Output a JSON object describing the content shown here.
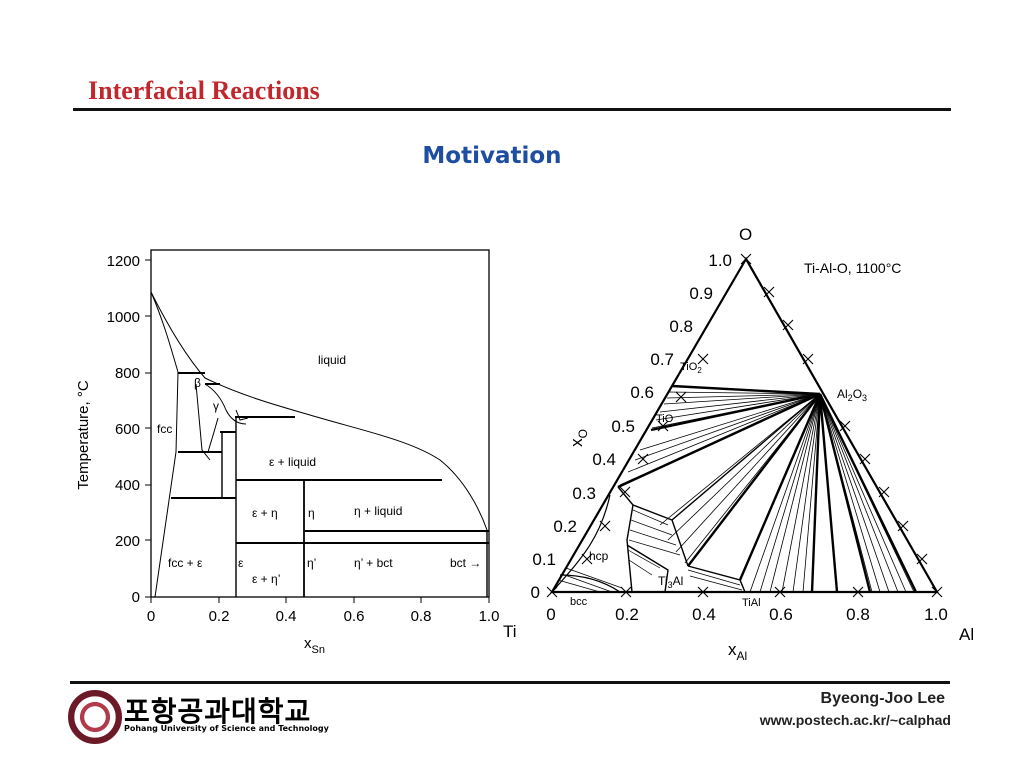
{
  "slide": {
    "title": "Interfacial Reactions",
    "subtitle": "Motivation"
  },
  "binary_diagram": {
    "ylabel": "Temperature, °C",
    "xlabel_main": "x",
    "xlabel_sub": "Sn",
    "y_ticks": [
      "0",
      "200",
      "400",
      "600",
      "800",
      "1000",
      "1200"
    ],
    "x_ticks": [
      "0",
      "0.2",
      "0.4",
      "0.6",
      "0.8",
      "1.0"
    ],
    "phases": {
      "liquid": "liquid",
      "fcc": "fcc",
      "beta": "β",
      "gamma": "γ",
      "eps_liquid": "ε + liquid",
      "eps_eta": "ε + η",
      "eta": "η",
      "eta_liquid": "η + liquid",
      "fcc_eps": "fcc + ε",
      "eps": "ε",
      "eta_prime": "η’",
      "eta_prime_bct": "η’ + bct",
      "bct": "bct →",
      "eps_eta_prime": "ε + η’"
    }
  },
  "ternary_diagram": {
    "title": "Ti-Al-O, 1100°C",
    "vertex_top": "O",
    "vertex_left": "Ti",
    "vertex_right": "Al",
    "xlabel_main": "x",
    "xlabel_sub": "Al",
    "ylabel_main": "x",
    "ylabel_sub": "O",
    "o_ticks": [
      "0",
      "0.1",
      "0.2",
      "0.3",
      "0.4",
      "0.5",
      "0.6",
      "0.7",
      "0.8",
      "0.9",
      "1.0"
    ],
    "al_ticks": [
      "0",
      "0.2",
      "0.4",
      "0.6",
      "0.8",
      "1.0"
    ],
    "phases": {
      "tio2": "TiO",
      "tio2_sub": "2",
      "tio": "TiO",
      "al2o3_a": "Al",
      "al2o3_sub1": "2",
      "al2o3_b": "O",
      "al2o3_sub2": "3",
      "hcp": "hcp",
      "bcc": "bcc",
      "ti3al_a": "Ti",
      "ti3al_sub": "3",
      "ti3al_b": "Al",
      "tial": "TiAl"
    }
  },
  "footer": {
    "logo_korean": "포항공과대학교",
    "logo_english": "Pohang University of Science and Technology",
    "author": "Byeong-Joo Lee",
    "website": "www.postech.ac.kr/~calphad"
  }
}
